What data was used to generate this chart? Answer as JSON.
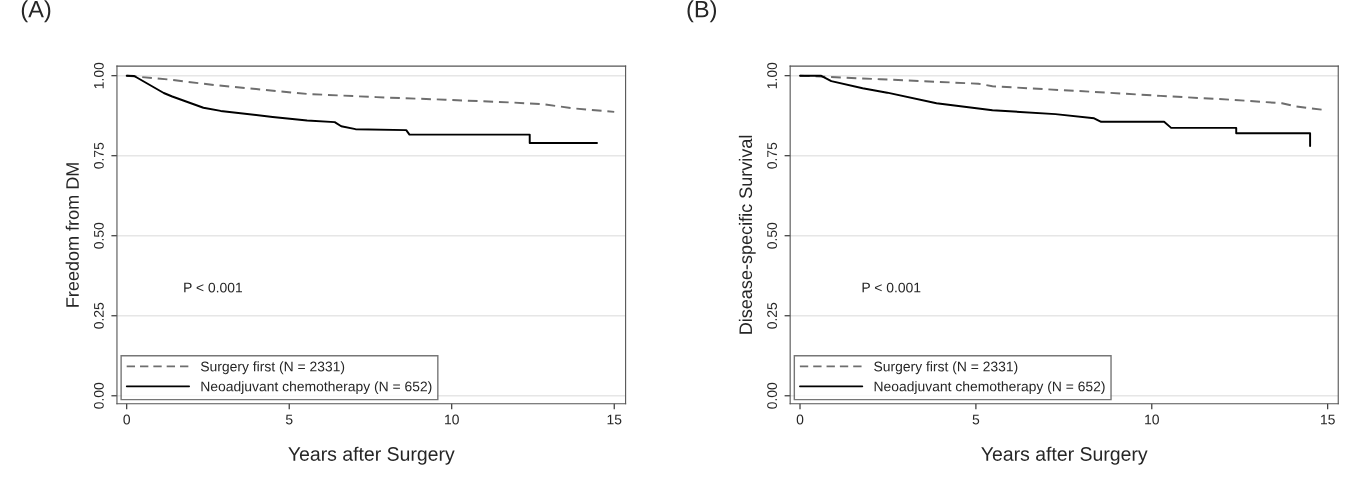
{
  "chart_data": [
    {
      "type": "line",
      "title": "(A)",
      "xlabel": "Years after Surgery",
      "ylabel": "Freedom from DM",
      "annotations": [
        "P < 0.001"
      ],
      "xlim": [
        -0.3,
        15.35
      ],
      "ylim": [
        -0.025,
        1.03
      ],
      "xticks": [
        0,
        5,
        10,
        15
      ],
      "yticks": [
        {
          "value": 0,
          "label": "0.00"
        },
        {
          "value": 0.25,
          "label": "0.25"
        },
        {
          "value": 0.5,
          "label": "0.50"
        },
        {
          "value": 0.75,
          "label": "0.75"
        },
        {
          "value": 1,
          "label": "1.00"
        }
      ],
      "grid": "y",
      "legend": "bottom left",
      "series": [
        {
          "name": "Surgery first (N = 2331)",
          "color": "#6e6e6e",
          "line_style": "dashed",
          "x": [
            0,
            1.3,
            2.68,
            5.55,
            7.68,
            9.8,
            11.9,
            12.8,
            13.75,
            15.0
          ],
          "values": [
            1.0,
            0.988,
            0.971,
            0.943,
            0.933,
            0.925,
            0.916,
            0.911,
            0.898,
            0.887
          ]
        },
        {
          "name": "Neoadjuvant chemotherapy (N = 652)",
          "color": "#000000",
          "line_style": "solid",
          "x": [
            0,
            0.23,
            1.14,
            1.4,
            2.36,
            2.89,
            4.49,
            5.55,
            6.4,
            6.6,
            7.04,
            8.6,
            8.7,
            12.4,
            12.4,
            14.47
          ],
          "values": [
            1.0,
            0.999,
            0.946,
            0.935,
            0.9,
            0.89,
            0.871,
            0.86,
            0.855,
            0.842,
            0.833,
            0.83,
            0.816,
            0.816,
            0.79,
            0.79
          ]
        }
      ]
    },
    {
      "type": "line",
      "title": "(B)",
      "xlabel": "Years after Surgery",
      "ylabel": "Disease-specific Survival",
      "annotations": [
        "P < 0.001"
      ],
      "xlim": [
        -0.28,
        15.3
      ],
      "ylim": [
        -0.025,
        1.03
      ],
      "xticks": [
        0,
        5,
        10,
        15
      ],
      "yticks": [
        {
          "value": 0,
          "label": "0.00"
        },
        {
          "value": 0.25,
          "label": "0.25"
        },
        {
          "value": 0.5,
          "label": "0.50"
        },
        {
          "value": 0.75,
          "label": "0.75"
        },
        {
          "value": 1,
          "label": "1.00"
        }
      ],
      "grid": "y",
      "legend": "bottom left",
      "series": [
        {
          "name": "Surgery first (N = 2331)",
          "color": "#6e6e6e",
          "line_style": "dashed",
          "x": [
            0,
            2.28,
            5.07,
            5.47,
            8.26,
            10.25,
            12.25,
            13.7,
            14.1,
            14.9
          ],
          "values": [
            1.0,
            0.989,
            0.975,
            0.967,
            0.95,
            0.937,
            0.925,
            0.914,
            0.904,
            0.893
          ]
        },
        {
          "name": "Neoadjuvant chemotherapy (N = 652)",
          "color": "#000000",
          "line_style": "solid",
          "x": [
            0,
            0.59,
            0.89,
            1.78,
            2.48,
            3.88,
            5.47,
            7.26,
            8.36,
            8.56,
            10.35,
            10.55,
            12.4,
            12.4,
            14.5,
            14.5
          ],
          "values": [
            1.0,
            1.0,
            0.983,
            0.961,
            0.947,
            0.914,
            0.892,
            0.88,
            0.867,
            0.856,
            0.856,
            0.837,
            0.837,
            0.82,
            0.82,
            0.78
          ]
        }
      ]
    }
  ]
}
